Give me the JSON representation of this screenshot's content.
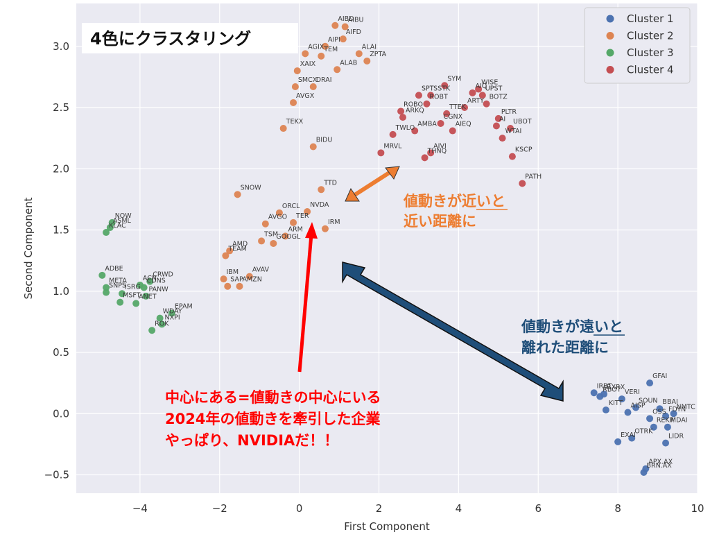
{
  "chart_data": {
    "type": "scatter",
    "xlabel": "First Component",
    "ylabel": "Second Component",
    "xlim": [
      -5.6,
      10.0
    ],
    "ylim": [
      -0.65,
      3.35
    ],
    "xticks": [
      -4,
      -2,
      0,
      2,
      4,
      6,
      8,
      10
    ],
    "yticks": [
      -0.5,
      0.0,
      0.5,
      1.0,
      1.5,
      2.0,
      2.5,
      3.0
    ],
    "xtick_labels": [
      "−4",
      "−2",
      "0",
      "2",
      "4",
      "6",
      "8",
      "10"
    ],
    "ytick_labels": [
      "−0.5",
      "0.0",
      "0.5",
      "1.0",
      "1.5",
      "2.0",
      "2.5",
      "3.0"
    ],
    "grid": true,
    "legend_position": "top-right",
    "series": [
      {
        "name": "Cluster 1",
        "color": "#4c72b0",
        "points": [
          {
            "label": "IRBT",
            "x": 7.4,
            "y": 0.17
          },
          {
            "label": "RBOT",
            "x": 7.55,
            "y": 0.14
          },
          {
            "label": "RXRX",
            "x": 7.65,
            "y": 0.16
          },
          {
            "label": "VERI",
            "x": 8.1,
            "y": 0.12
          },
          {
            "label": "GFAI",
            "x": 8.8,
            "y": 0.25
          },
          {
            "label": "BBAI",
            "x": 9.05,
            "y": 0.04
          },
          {
            "label": "NMTC",
            "x": 9.4,
            "y": 0.0
          },
          {
            "label": "SOUN",
            "x": 8.45,
            "y": 0.05
          },
          {
            "label": "KITT",
            "x": 7.7,
            "y": 0.03
          },
          {
            "label": "AISP",
            "x": 8.25,
            "y": 0.01
          },
          {
            "label": "FDYN",
            "x": 9.2,
            "y": -0.02
          },
          {
            "label": "OSS",
            "x": 8.8,
            "y": -0.04
          },
          {
            "label": "REKR",
            "x": 8.9,
            "y": -0.11
          },
          {
            "label": "MDAI",
            "x": 9.25,
            "y": -0.11
          },
          {
            "label": "OTRK",
            "x": 8.35,
            "y": -0.2
          },
          {
            "label": "EXAI",
            "x": 8.0,
            "y": -0.23
          },
          {
            "label": "LIDR",
            "x": 9.2,
            "y": -0.24
          },
          {
            "label": "APX.AX",
            "x": 8.7,
            "y": -0.45
          },
          {
            "label": "BRN.AX",
            "x": 8.65,
            "y": -0.48
          }
        ]
      },
      {
        "name": "Cluster 2",
        "color": "#dd8452",
        "points": [
          {
            "label": "AIBD",
            "x": 0.9,
            "y": 3.17
          },
          {
            "label": "AIBU",
            "x": 1.15,
            "y": 3.16
          },
          {
            "label": "AIFD",
            "x": 1.1,
            "y": 3.06
          },
          {
            "label": "AIPI",
            "x": 0.65,
            "y": 3.0
          },
          {
            "label": "AGIX",
            "x": 0.15,
            "y": 2.94
          },
          {
            "label": "ALAI",
            "x": 1.5,
            "y": 2.94
          },
          {
            "label": "TEM",
            "x": 0.55,
            "y": 2.92
          },
          {
            "label": "ZPTA",
            "x": 1.7,
            "y": 2.88
          },
          {
            "label": "ALAB",
            "x": 0.95,
            "y": 2.81
          },
          {
            "label": "XAIX",
            "x": -0.05,
            "y": 2.8
          },
          {
            "label": "DRAI",
            "x": 0.35,
            "y": 2.67
          },
          {
            "label": "SMCX",
            "x": -0.1,
            "y": 2.67
          },
          {
            "label": "AVGX",
            "x": -0.15,
            "y": 2.54
          },
          {
            "label": "TEKX",
            "x": -0.4,
            "y": 2.33
          },
          {
            "label": "BIDU",
            "x": 0.35,
            "y": 2.18
          },
          {
            "label": "TTD",
            "x": 0.55,
            "y": 1.83
          },
          {
            "label": "SNOW",
            "x": -1.55,
            "y": 1.79
          },
          {
            "label": "ORCL",
            "x": -0.5,
            "y": 1.64
          },
          {
            "label": "NVDA",
            "x": 0.2,
            "y": 1.65
          },
          {
            "label": "TER",
            "x": -0.15,
            "y": 1.56
          },
          {
            "label": "AVGO",
            "x": -0.85,
            "y": 1.55
          },
          {
            "label": "IRM",
            "x": 0.65,
            "y": 1.51
          },
          {
            "label": "ARM",
            "x": -0.35,
            "y": 1.45
          },
          {
            "label": "TSM",
            "x": -0.95,
            "y": 1.41
          },
          {
            "label": "GOOGL",
            "x": -0.65,
            "y": 1.39
          },
          {
            "label": "AMD",
            "x": -1.75,
            "y": 1.33
          },
          {
            "label": "TEAM",
            "x": -1.85,
            "y": 1.29
          },
          {
            "label": "IBM",
            "x": -1.9,
            "y": 1.1
          },
          {
            "label": "AVAV",
            "x": -1.25,
            "y": 1.12
          },
          {
            "label": "SAP",
            "x": -1.8,
            "y": 1.04
          },
          {
            "label": "AMZN",
            "x": -1.5,
            "y": 1.04
          }
        ]
      },
      {
        "name": "Cluster 3",
        "color": "#55a868",
        "points": [
          {
            "label": "NOW",
            "x": -4.7,
            "y": 1.56
          },
          {
            "label": "ASML",
            "x": -4.75,
            "y": 1.52
          },
          {
            "label": "KLAC",
            "x": -4.85,
            "y": 1.48
          },
          {
            "label": "ADBE",
            "x": -4.95,
            "y": 1.13
          },
          {
            "label": "META",
            "x": -4.85,
            "y": 1.03
          },
          {
            "label": "SNPS",
            "x": -4.85,
            "y": 0.99
          },
          {
            "label": "ACN",
            "x": -4.0,
            "y": 1.05
          },
          {
            "label": "CRWD",
            "x": -3.75,
            "y": 1.08
          },
          {
            "label": "CDNS",
            "x": -3.9,
            "y": 1.03
          },
          {
            "label": "ISRG",
            "x": -4.45,
            "y": 0.98
          },
          {
            "label": "PANW",
            "x": -3.85,
            "y": 0.96
          },
          {
            "label": "MSFT",
            "x": -4.5,
            "y": 0.91
          },
          {
            "label": "ANET",
            "x": -4.1,
            "y": 0.9
          },
          {
            "label": "EPAM",
            "x": -3.2,
            "y": 0.82
          },
          {
            "label": "WDAY",
            "x": -3.5,
            "y": 0.78
          },
          {
            "label": "NXPI",
            "x": -3.45,
            "y": 0.73
          },
          {
            "label": "ROK",
            "x": -3.7,
            "y": 0.68
          }
        ]
      },
      {
        "name": "Cluster 4",
        "color": "#c44e52",
        "points": [
          {
            "label": "SYM",
            "x": 3.65,
            "y": 2.68
          },
          {
            "label": "WISE",
            "x": 4.5,
            "y": 2.65
          },
          {
            "label": "AIQ",
            "x": 4.35,
            "y": 2.62
          },
          {
            "label": "UPST",
            "x": 4.6,
            "y": 2.6
          },
          {
            "label": "SPT",
            "x": 3.0,
            "y": 2.6
          },
          {
            "label": "SSTK",
            "x": 3.3,
            "y": 2.6
          },
          {
            "label": "BOTZ",
            "x": 4.7,
            "y": 2.53
          },
          {
            "label": "ROBT",
            "x": 3.2,
            "y": 2.53
          },
          {
            "label": "ROBO",
            "x": 2.55,
            "y": 2.47
          },
          {
            "label": "ARTY",
            "x": 4.15,
            "y": 2.5
          },
          {
            "label": "TTEK",
            "x": 3.7,
            "y": 2.45
          },
          {
            "label": "ARKQ",
            "x": 2.6,
            "y": 2.42
          },
          {
            "label": "PLTR",
            "x": 5.0,
            "y": 2.41
          },
          {
            "label": "CGNX",
            "x": 3.55,
            "y": 2.37
          },
          {
            "label": "AI",
            "x": 4.95,
            "y": 2.35
          },
          {
            "label": "UBOT",
            "x": 5.3,
            "y": 2.33
          },
          {
            "label": "AMBA",
            "x": 2.9,
            "y": 2.31
          },
          {
            "label": "AIEQ",
            "x": 3.85,
            "y": 2.31
          },
          {
            "label": "TWLO",
            "x": 2.35,
            "y": 2.28
          },
          {
            "label": "WTAI",
            "x": 5.1,
            "y": 2.25
          },
          {
            "label": "AIVI",
            "x": 3.3,
            "y": 2.13
          },
          {
            "label": "MRVL",
            "x": 2.05,
            "y": 2.13
          },
          {
            "label": "THNQ",
            "x": 3.15,
            "y": 2.09
          },
          {
            "label": "KSCP",
            "x": 5.35,
            "y": 2.1
          },
          {
            "label": "PATH",
            "x": 5.6,
            "y": 1.88
          }
        ]
      }
    ],
    "annotations": [
      {
        "id": "title_box",
        "lines": [
          "4色にクラスタリング"
        ],
        "color": "#111111"
      },
      {
        "id": "orange_note",
        "lines": [
          "値動きが近いと",
          "近い距離に"
        ],
        "color": "#ed7d31"
      },
      {
        "id": "blue_note",
        "lines": [
          "値動きが遠いと",
          "離れた距離に"
        ],
        "color": "#1f4e79"
      },
      {
        "id": "red_note",
        "lines": [
          "中心にある=値動きの中心にいる",
          "2024年の値動きを牽引した企業",
          "やっぱり、NVIDIAだ！！"
        ],
        "color": "#ff0000"
      }
    ],
    "arrow_colors": {
      "orange": "#ed7d31",
      "blue": "#1f4e79",
      "red": "#ff0000"
    }
  }
}
